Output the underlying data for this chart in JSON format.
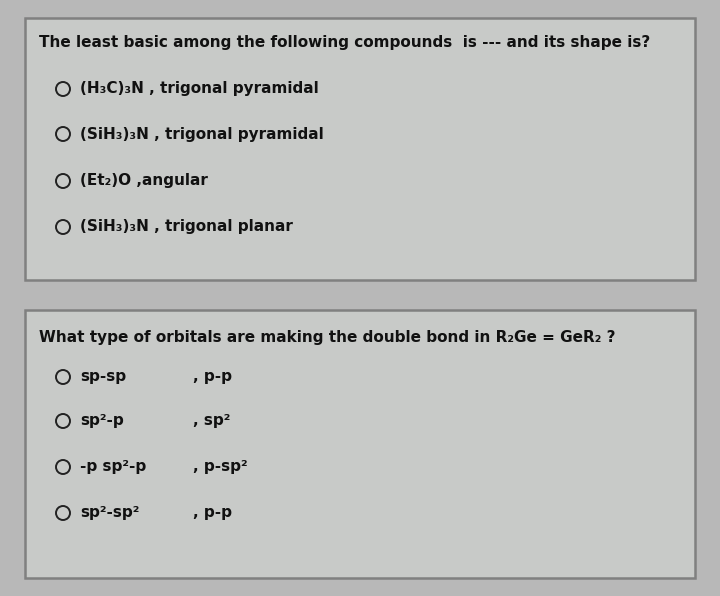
{
  "bg_color": "#b8b8b8",
  "box_facecolor": "#c8cac8",
  "box_edgecolor": "#808080",
  "text_color": "#111111",
  "q1_title": "The least basic among the following compounds  is --- and its shape is?",
  "q1_options": [
    "(H₃C)₃N , trigonal pyramidal",
    "(SiH₃)₃N , trigonal pyramidal",
    "(Et₂)O ,angular",
    "(SiH₃)₃N , trigonal planar"
  ],
  "q2_title": "What type of orbitals are making the double bond in R₂Ge = GeR₂ ?",
  "q2_col1": [
    "sp-sp",
    "sp²-p",
    "-p sp²-p",
    "sp²-sp²"
  ],
  "q2_col2": [
    ", p-p",
    ", sp²",
    ", p-sp²",
    ", p-p"
  ],
  "fig_width": 7.2,
  "fig_height": 5.96,
  "dpi": 100
}
